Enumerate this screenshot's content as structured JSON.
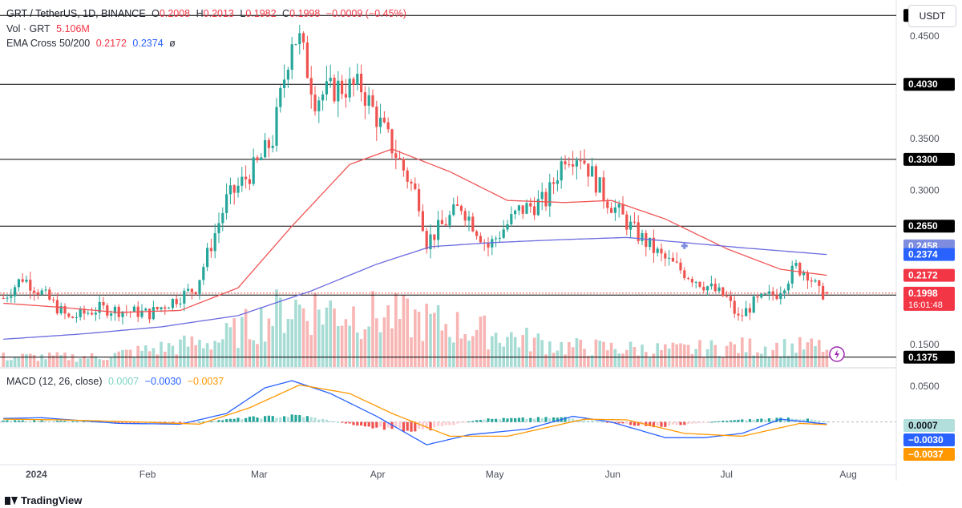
{
  "header": {
    "symbol": "GRT / TetherUS, 1D, BINANCE",
    "open_label": "O",
    "open": "0.2008",
    "high_label": "H",
    "high": "0.2013",
    "low_label": "L",
    "low": "0.1982",
    "close_label": "C",
    "close": "0.1998",
    "change": "−0.0009 (−0.45%)",
    "vol_label": "Vol · GRT",
    "vol": "5.106M",
    "ema_label": "EMA Cross 50/200",
    "ema50": "0.2172",
    "ema200": "0.2374",
    "ema_extra": "ø",
    "macd_label": "MACD (12, 26, close)",
    "macd_hist": "0.0007",
    "macd_line": "−0.0030",
    "macd_signal": "−0.0037"
  },
  "currency_button": "USDT",
  "brand": "TradingView",
  "colors": {
    "up": "#26a69a",
    "down": "#ef5350",
    "ema50": "#f05555",
    "ema200": "#6b6bdf",
    "macd": "#2962ff",
    "signal": "#ff9800"
  },
  "chart_data": [
    {
      "type": "candlestick",
      "x_tick_labels": [
        "2024",
        "Feb",
        "Mar",
        "Apr",
        "May",
        "Jun",
        "Jul",
        "Aug"
      ],
      "x_tick_dates": [
        "2024-01-01",
        "2024-02-01",
        "2024-03-01",
        "2024-04-01",
        "2024-05-01",
        "2024-06-01",
        "2024-07-01",
        "2024-08-01"
      ],
      "y_tick_labels": [
        "0.4500",
        "0.3500",
        "0.3000",
        "0.1500"
      ],
      "y_ticks": [
        0.45,
        0.35,
        0.3,
        0.15
      ],
      "ylim": [
        0.128,
        0.485
      ],
      "horizontal_levels": [
        "0.4700",
        "0.4030",
        "0.3300",
        "0.2650",
        "0.1980",
        "0.1375"
      ],
      "horizontal_level_values": [
        0.47,
        0.403,
        0.33,
        0.265,
        0.198,
        0.1375
      ],
      "price_labels": [
        {
          "text": "0.2458",
          "value": 0.2458,
          "kind": "ema-cross"
        },
        {
          "text": "0.2374",
          "value": 0.2374,
          "kind": "ema200"
        },
        {
          "text": "0.2172",
          "value": 0.2172,
          "kind": "ema50"
        },
        {
          "text": "0.1998",
          "value": 0.1998,
          "kind": "last",
          "countdown": "16:01:48"
        }
      ],
      "close_anchors": {
        "dates": [
          "2023-12-26",
          "2023-12-31",
          "2024-01-05",
          "2024-01-12",
          "2024-01-20",
          "2024-02-02",
          "2024-02-14",
          "2024-02-22",
          "2024-03-01",
          "2024-03-05",
          "2024-03-10",
          "2024-03-12",
          "2024-03-16",
          "2024-03-22",
          "2024-03-28",
          "2024-04-06",
          "2024-04-12",
          "2024-04-14",
          "2024-04-23",
          "2024-04-30",
          "2024-05-08",
          "2024-05-15",
          "2024-05-20",
          "2024-05-24",
          "2024-05-30",
          "2024-06-07",
          "2024-06-14",
          "2024-06-20",
          "2024-07-01",
          "2024-07-04",
          "2024-07-08",
          "2024-07-14",
          "2024-07-19",
          "2024-07-22",
          "2024-07-25",
          "2024-07-27"
        ],
        "values": [
          0.195,
          0.215,
          0.2,
          0.175,
          0.185,
          0.18,
          0.205,
          0.29,
          0.325,
          0.35,
          0.45,
          0.445,
          0.39,
          0.4,
          0.4,
          0.335,
          0.29,
          0.25,
          0.285,
          0.245,
          0.28,
          0.29,
          0.335,
          0.335,
          0.295,
          0.26,
          0.235,
          0.22,
          0.195,
          0.175,
          0.19,
          0.2,
          0.225,
          0.22,
          0.2,
          0.1998
        ]
      },
      "ema50": {
        "dates": [
          "2023-12-26",
          "2024-01-10",
          "2024-01-25",
          "2024-02-10",
          "2024-02-25",
          "2024-03-10",
          "2024-03-25",
          "2024-04-05",
          "2024-04-20",
          "2024-05-05",
          "2024-05-20",
          "2024-06-01",
          "2024-06-15",
          "2024-07-01",
          "2024-07-15",
          "2024-07-27"
        ],
        "values": [
          0.19,
          0.186,
          0.181,
          0.183,
          0.205,
          0.265,
          0.325,
          0.34,
          0.318,
          0.29,
          0.288,
          0.29,
          0.272,
          0.243,
          0.223,
          0.2172
        ]
      },
      "ema200": {
        "dates": [
          "2023-12-26",
          "2024-01-15",
          "2024-02-05",
          "2024-02-25",
          "2024-03-15",
          "2024-04-01",
          "2024-04-15",
          "2024-05-01",
          "2024-05-20",
          "2024-06-05",
          "2024-06-20",
          "2024-07-05",
          "2024-07-27"
        ],
        "values": [
          0.155,
          0.16,
          0.167,
          0.178,
          0.202,
          0.228,
          0.245,
          0.249,
          0.252,
          0.254,
          0.249,
          0.244,
          0.2374
        ]
      },
      "volume": {
        "dates": [
          "2024-01-20",
          "2024-02-20",
          "2024-03-10",
          "2024-04-12",
          "2024-05-20",
          "2024-06-18",
          "2024-07-04"
        ],
        "values_million": [
          3,
          8,
          18,
          14,
          6,
          5,
          6
        ]
      },
      "last_volume_million": 5.106
    },
    {
      "type": "macd",
      "y_tick_labels": [
        "0.0500"
      ],
      "y_ticks": [
        0.05
      ],
      "ylim": [
        -0.06,
        0.075
      ],
      "values_label": [
        "0.0007",
        "−0.0030",
        "−0.0037"
      ],
      "last": {
        "histogram": 0.0007,
        "macd": -0.003,
        "signal": -0.0037
      },
      "macd_line": {
        "dates": [
          "2023-12-26",
          "2024-01-05",
          "2024-01-25",
          "2024-02-10",
          "2024-02-22",
          "2024-03-03",
          "2024-03-10",
          "2024-03-20",
          "2024-04-01",
          "2024-04-14",
          "2024-04-25",
          "2024-05-10",
          "2024-05-22",
          "2024-06-01",
          "2024-06-15",
          "2024-06-25",
          "2024-07-05",
          "2024-07-15",
          "2024-07-27"
        ],
        "values": [
          0.005,
          0.006,
          -0.002,
          -0.003,
          0.012,
          0.048,
          0.058,
          0.04,
          0.008,
          -0.032,
          -0.018,
          -0.01,
          0.008,
          0.0,
          -0.022,
          -0.022,
          -0.016,
          0.004,
          -0.003
        ]
      },
      "signal_line": {
        "dates": [
          "2023-12-26",
          "2024-01-10",
          "2024-01-30",
          "2024-02-15",
          "2024-02-28",
          "2024-03-12",
          "2024-03-25",
          "2024-04-05",
          "2024-04-20",
          "2024-05-05",
          "2024-05-25",
          "2024-06-05",
          "2024-06-20",
          "2024-07-05",
          "2024-07-20",
          "2024-07-27"
        ],
        "values": [
          0.004,
          0.003,
          0.0,
          -0.003,
          0.02,
          0.052,
          0.04,
          0.012,
          -0.02,
          -0.02,
          0.004,
          0.003,
          -0.016,
          -0.02,
          -0.002,
          -0.0037
        ]
      },
      "histogram_anchors": {
        "dates": [
          "2024-01-05",
          "2024-02-10",
          "2024-02-28",
          "2024-03-12",
          "2024-03-30",
          "2024-04-12",
          "2024-04-28",
          "2024-05-20",
          "2024-06-12",
          "2024-07-01",
          "2024-07-18",
          "2024-07-27"
        ],
        "values": [
          0.002,
          -0.002,
          0.006,
          0.009,
          -0.007,
          -0.013,
          0.004,
          0.006,
          -0.007,
          0.002,
          0.006,
          0.0007
        ]
      }
    }
  ]
}
